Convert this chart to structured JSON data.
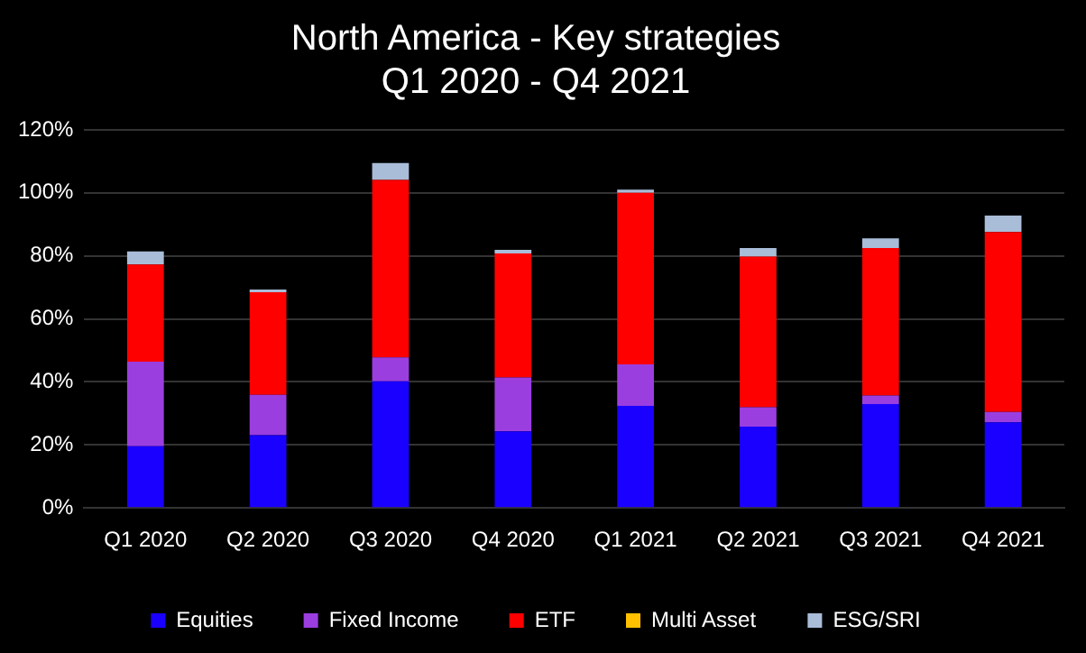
{
  "chart_data": {
    "type": "bar",
    "title": "North America - Key strategies\nQ1 2020 - Q4 2021",
    "stacked": true,
    "categories": [
      "Q1 2020",
      "Q2 2020",
      "Q3 2020",
      "Q4 2020",
      "Q1 2021",
      "Q2 2021",
      "Q3 2021",
      "Q4 2021"
    ],
    "series": [
      {
        "name": "Equities",
        "color": "#1a00ff",
        "values": [
          19.6,
          23.1,
          40.2,
          24.3,
          32.4,
          25.8,
          33,
          27.2
        ]
      },
      {
        "name": "Fixed Income",
        "color": "#9b3ee0",
        "values": [
          26.8,
          12.8,
          7.6,
          17.1,
          13.2,
          6.2,
          2.7,
          3.3
        ]
      },
      {
        "name": "ETF",
        "color": "#ff0000",
        "values": [
          30.9,
          32.6,
          56.3,
          39.4,
          54.4,
          47.8,
          46.8,
          57.1
        ]
      },
      {
        "name": "Multi Asset",
        "color": "#ffc000",
        "values": [
          0,
          0,
          0,
          0,
          0,
          0,
          0,
          0
        ]
      },
      {
        "name": "ESG/SRI",
        "color": "#a9bcd8",
        "values": [
          4.1,
          0.8,
          5.4,
          1.1,
          1,
          2.7,
          3.1,
          5.2
        ]
      }
    ],
    "ylim": [
      0,
      120
    ],
    "yticks": [
      {
        "value": 0,
        "label": "0%"
      },
      {
        "value": 20,
        "label": "20%"
      },
      {
        "value": 40,
        "label": "40%"
      },
      {
        "value": 60,
        "label": "60%"
      },
      {
        "value": 80,
        "label": "80%"
      },
      {
        "value": 100,
        "label": "100%"
      },
      {
        "value": 120,
        "label": "120%"
      }
    ],
    "grid": "y",
    "legend": "bottom"
  }
}
